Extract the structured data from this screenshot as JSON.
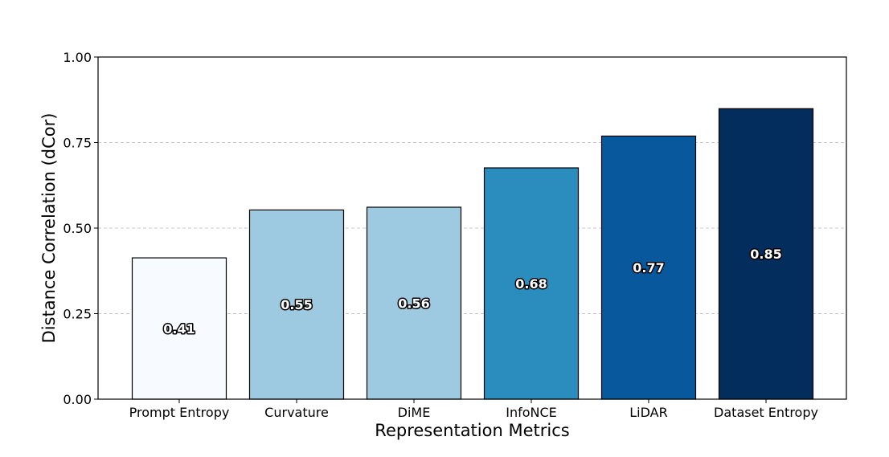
{
  "chart_data": {
    "type": "bar",
    "title": "",
    "xlabel": "Representation Metrics",
    "ylabel": "Distance Correlation (dCor)",
    "ylim": [
      0,
      1.0
    ],
    "yticks": [
      0.0,
      0.25,
      0.5,
      0.75,
      1.0
    ],
    "ytick_labels": [
      "0.00",
      "0.25",
      "0.50",
      "0.75",
      "1.00"
    ],
    "grid": "y-dashed",
    "categories": [
      "Prompt Entropy",
      "Curvature",
      "DiME",
      "InfoNCE",
      "LiDAR",
      "Dataset Entropy"
    ],
    "values": [
      0.413,
      0.553,
      0.561,
      0.676,
      0.769,
      0.849
    ],
    "data_labels": [
      "0.41",
      "0.55",
      "0.56",
      "0.68",
      "0.77",
      "0.85"
    ],
    "colors": [
      "#f7fbff",
      "#9ecae1",
      "#9ecae1",
      "#2b8cbe",
      "#08589e",
      "#032d5c"
    ],
    "label_text_colors": [
      "#ffffff",
      "#ffffff",
      "#ffffff",
      "#ffffff",
      "#ffffff",
      "#ffffff"
    ],
    "label_outline_color": "#000000"
  }
}
